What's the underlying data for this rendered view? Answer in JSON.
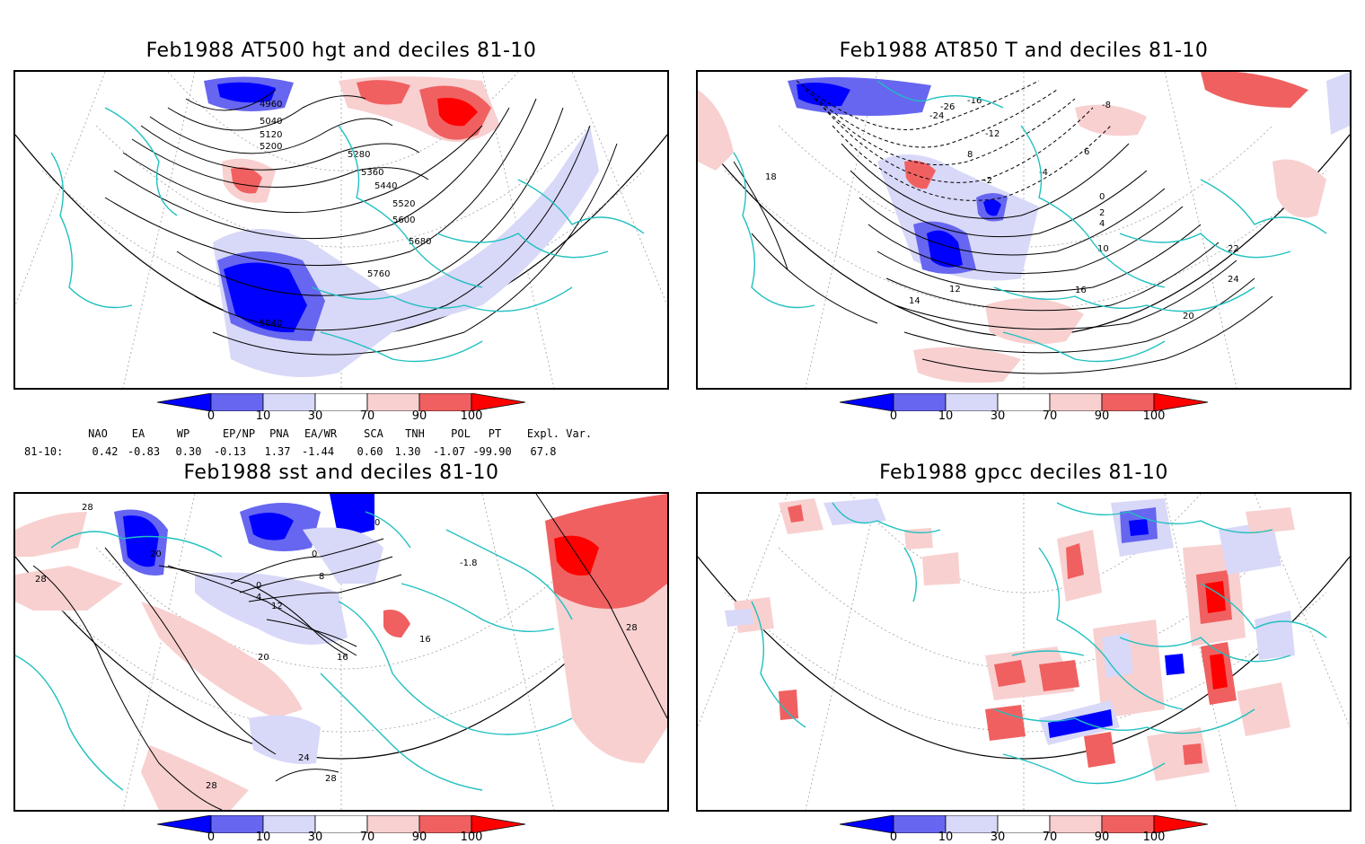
{
  "panels": [
    {
      "title": "Feb1988 AT500 hgt and deciles 81-10"
    },
    {
      "title": "Feb1988 AT850 T and deciles 81-10"
    },
    {
      "title": "Feb1988 sst and deciles 81-10"
    },
    {
      "title": "Feb1988 gpcc deciles 81-10"
    }
  ],
  "colorbar": {
    "labels": [
      "0",
      "10",
      "30",
      "70",
      "90",
      "100"
    ],
    "colors": [
      "#0000ff",
      "#6666f0",
      "#d8d8f8",
      "#ffffff",
      "#f8d0d0",
      "#f06060",
      "#ff0000"
    ]
  },
  "indices": {
    "headers": [
      "NAO",
      "EA",
      "WP",
      "EP/NP",
      "PNA",
      "EA/WR",
      "SCA",
      "TNH",
      "POL",
      "PT",
      "Expl. Var."
    ],
    "row_label": "81-10:",
    "values": [
      "0.42",
      "-0.83",
      "0.30",
      "-0.13",
      "1.37",
      "-1.44",
      "0.60",
      "1.30",
      "-1.07",
      "-99.90",
      "67.8"
    ]
  },
  "contour_labels": {
    "hgt": [
      "4960",
      "5040",
      "5120",
      "5200",
      "5280",
      "5360",
      "5440",
      "5520",
      "5600",
      "5680",
      "5760",
      "5840"
    ],
    "t850": [
      "-24",
      "-26",
      "-16",
      "-12",
      "-8",
      "-4",
      "-2",
      "0",
      "2",
      "4",
      "6",
      "8",
      "10",
      "12",
      "14",
      "16",
      "18",
      "20",
      "22",
      "24"
    ],
    "sst": [
      "28",
      "20",
      "0",
      "4",
      "8",
      "12",
      "16",
      "24",
      "-1.8"
    ]
  },
  "colors": {
    "coast": "#20c0c0",
    "contour": "#000000",
    "grid": "#a0a0a0"
  }
}
